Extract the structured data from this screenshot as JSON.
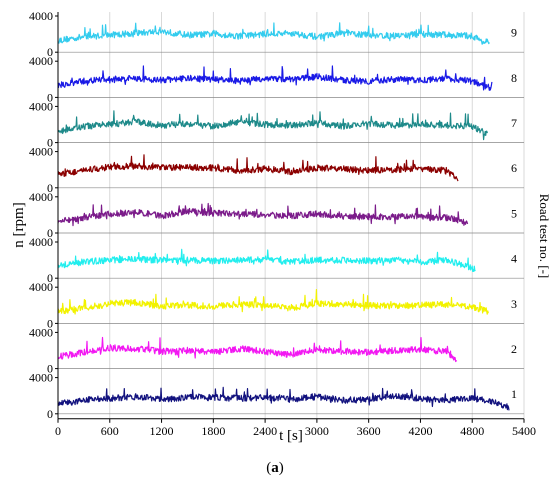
{
  "chart_data": {
    "type": "line",
    "caption_prefix": "(",
    "caption_letter": "a",
    "caption_suffix": ")",
    "xlabel": "t [s]",
    "ylabel": "n [rpm]",
    "ylabel_right": "Road test no. [-]",
    "xlim": [
      0,
      5400
    ],
    "x_ticks": [
      "0",
      "600",
      "1200",
      "1800",
      "2400",
      "3000",
      "3600",
      "4200",
      "4800",
      "5400"
    ],
    "ylim": [
      0,
      4000
    ],
    "y_ticks": [
      "0",
      "4000"
    ],
    "series": [
      {
        "name": "9",
        "color": "#33CCEE",
        "end_t": 5000,
        "base": 1600,
        "t": [
          0,
          300,
          600,
          900,
          1200,
          1500,
          1800,
          2100,
          2400,
          2700,
          3000,
          3300,
          3600,
          3900,
          4200,
          4500,
          4800,
          5000
        ],
        "rpm": [
          1300,
          1700,
          1900,
          2100,
          2300,
          1900,
          2000,
          1800,
          2000,
          2100,
          1700,
          2100,
          1900,
          1800,
          2000,
          1900,
          1800,
          800
        ]
      },
      {
        "name": "8",
        "color": "#1A1AE6",
        "end_t": 5030,
        "base": 1700,
        "t": [
          0,
          300,
          600,
          900,
          1200,
          1500,
          1800,
          2100,
          2400,
          2700,
          3000,
          3300,
          3600,
          3900,
          4200,
          4500,
          4800,
          5030
        ],
        "rpm": [
          1300,
          1800,
          2000,
          2100,
          1900,
          2100,
          2000,
          1800,
          2100,
          2000,
          2300,
          1900,
          1800,
          2000,
          1900,
          2100,
          1800,
          1000
        ]
      },
      {
        "name": "7",
        "color": "#1E8A8A",
        "end_t": 4980,
        "base": 1600,
        "t": [
          0,
          300,
          600,
          900,
          1200,
          1500,
          1800,
          2100,
          2400,
          2700,
          3000,
          3300,
          3600,
          3900,
          4200,
          4500,
          4800,
          4980
        ],
        "rpm": [
          1200,
          1800,
          2000,
          2300,
          1900,
          2100,
          1800,
          2300,
          2000,
          1900,
          2200,
          1800,
          2100,
          1900,
          2000,
          1900,
          1800,
          900
        ]
      },
      {
        "name": "6",
        "color": "#8B0000",
        "end_t": 4640,
        "base": 1600,
        "t": [
          0,
          300,
          600,
          900,
          1200,
          1500,
          1800,
          2100,
          2400,
          2700,
          3000,
          3300,
          3600,
          3900,
          4200,
          4500,
          4640
        ],
        "rpm": [
          1500,
          1900,
          2300,
          2400,
          2200,
          2300,
          2200,
          1900,
          2100,
          1800,
          2200,
          2100,
          1900,
          2000,
          2100,
          1900,
          900
        ]
      },
      {
        "name": "5",
        "color": "#7B1B8A",
        "end_t": 4750,
        "base": 1600,
        "t": [
          0,
          300,
          600,
          900,
          1200,
          1500,
          1800,
          2100,
          2400,
          2700,
          3000,
          3300,
          3600,
          3900,
          4200,
          4500,
          4750
        ],
        "rpm": [
          1300,
          1700,
          2100,
          2300,
          1900,
          2400,
          2200,
          2100,
          2000,
          1900,
          2100,
          1800,
          1800,
          1800,
          1800,
          1700,
          1200
        ]
      },
      {
        "name": "4",
        "color": "#22EEEE",
        "end_t": 4840,
        "base": 1600,
        "t": [
          0,
          300,
          600,
          900,
          1200,
          1500,
          1800,
          2100,
          2400,
          2700,
          3000,
          3300,
          3600,
          3900,
          4200,
          4500,
          4840
        ],
        "rpm": [
          1400,
          1800,
          2000,
          2100,
          2000,
          2000,
          1900,
          2000,
          2100,
          1800,
          2000,
          2000,
          1900,
          2000,
          1800,
          2000,
          1000
        ]
      },
      {
        "name": "3",
        "color": "#F2F200",
        "end_t": 4990,
        "base": 1600,
        "t": [
          0,
          300,
          600,
          900,
          1200,
          1500,
          1800,
          2100,
          2400,
          2700,
          3000,
          3300,
          3600,
          3900,
          4200,
          4500,
          4800,
          4990
        ],
        "rpm": [
          1300,
          1700,
          2200,
          2300,
          1900,
          2000,
          1900,
          2100,
          2000,
          1700,
          2200,
          2100,
          2000,
          1900,
          2000,
          2100,
          1800,
          1300
        ]
      },
      {
        "name": "2",
        "color": "#F218F2",
        "end_t": 4620,
        "base": 1600,
        "t": [
          0,
          300,
          600,
          900,
          1200,
          1500,
          1800,
          2100,
          2400,
          2700,
          3000,
          3300,
          3600,
          3900,
          4200,
          4500,
          4620
        ],
        "rpm": [
          1300,
          1800,
          2300,
          2200,
          1900,
          2000,
          1800,
          2200,
          1900,
          1500,
          2100,
          1900,
          1800,
          2000,
          2100,
          1900,
          1000
        ]
      },
      {
        "name": "1",
        "color": "#12127E",
        "end_t": 5230,
        "base": 1500,
        "t": [
          0,
          300,
          600,
          900,
          1200,
          1500,
          1800,
          2100,
          2400,
          2700,
          3000,
          3300,
          3600,
          3900,
          4200,
          4500,
          4800,
          5000,
          5230
        ],
        "rpm": [
          1100,
          1500,
          1700,
          1900,
          1600,
          1800,
          1800,
          1700,
          1800,
          1600,
          1900,
          1500,
          1600,
          2000,
          1700,
          1500,
          1700,
          1400,
          700
        ]
      }
    ]
  }
}
